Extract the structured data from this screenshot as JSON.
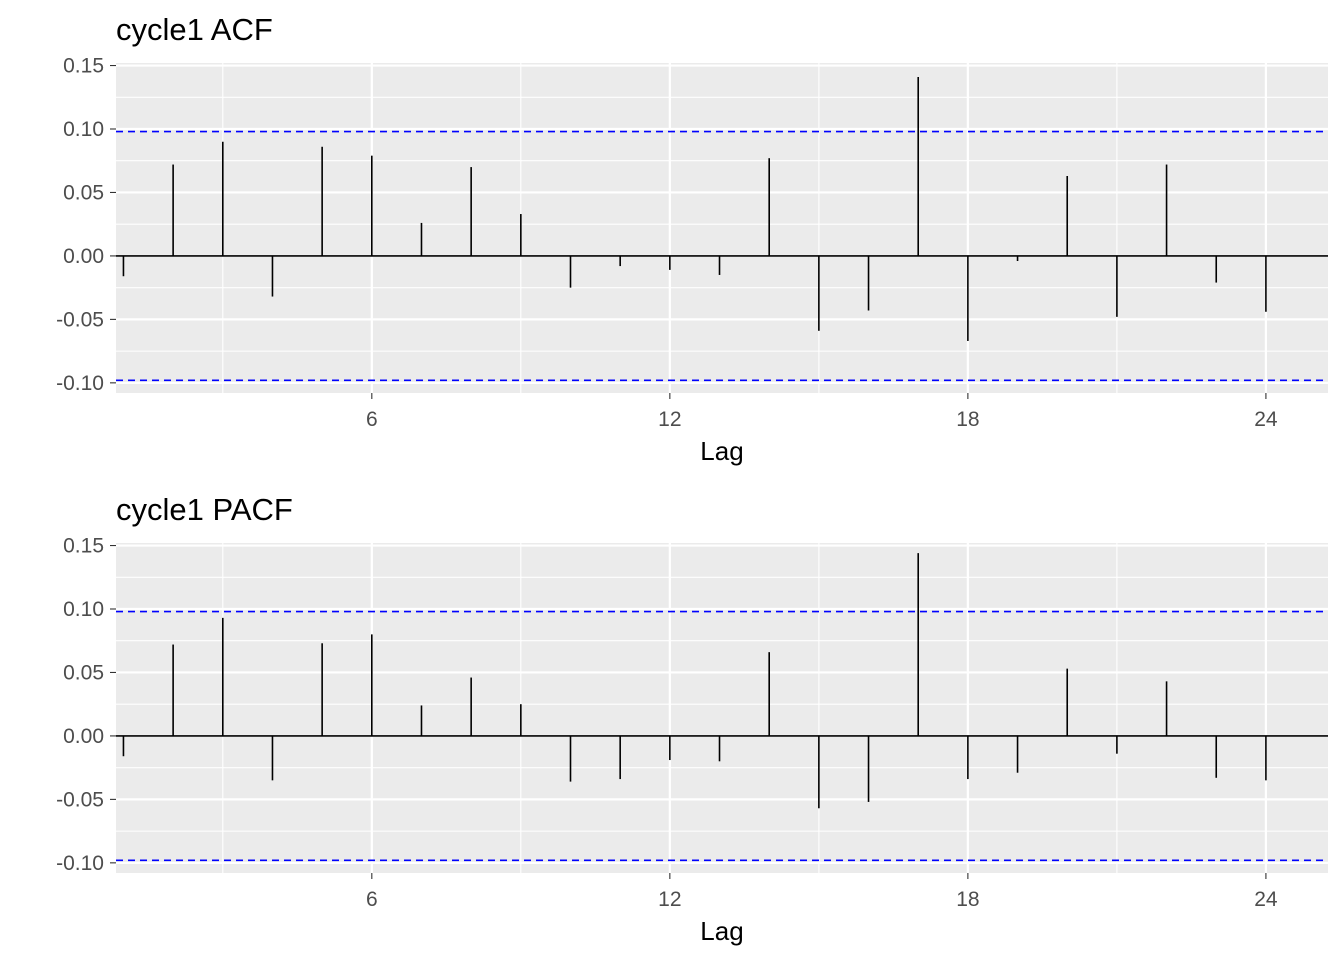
{
  "chart_data": [
    {
      "type": "bar",
      "title": "cycle1 ACF",
      "xlabel": "Lag",
      "ylabel": "",
      "xlim": [
        0.85,
        25.25
      ],
      "ylim": [
        -0.108,
        0.152
      ],
      "x_ticks": [
        6,
        12,
        18,
        24
      ],
      "y_ticks": [
        -0.1,
        -0.05,
        0.0,
        0.05,
        0.1,
        0.15
      ],
      "y_tick_labels": [
        "-0.10",
        "-0.05",
        "0.00",
        "0.05",
        "0.10",
        "0.15"
      ],
      "confidence_bound": 0.098,
      "bound_color": "#0000ff",
      "lags": [
        1,
        2,
        3,
        4,
        5,
        6,
        7,
        8,
        9,
        10,
        11,
        12,
        13,
        14,
        15,
        16,
        17,
        18,
        19,
        20,
        21,
        22,
        23,
        24
      ],
      "values": [
        -0.016,
        0.072,
        0.09,
        -0.032,
        0.086,
        0.079,
        0.026,
        0.07,
        0.033,
        -0.025,
        -0.008,
        -0.011,
        -0.015,
        0.077,
        -0.059,
        -0.043,
        0.141,
        -0.067,
        -0.004,
        0.063,
        -0.048,
        0.072,
        -0.021,
        -0.044
      ],
      "grid": true,
      "panel_background": "#ebebeb"
    },
    {
      "type": "bar",
      "title": "cycle1 PACF",
      "xlabel": "Lag",
      "ylabel": "",
      "xlim": [
        0.85,
        25.25
      ],
      "ylim": [
        -0.108,
        0.152
      ],
      "x_ticks": [
        6,
        12,
        18,
        24
      ],
      "y_ticks": [
        -0.1,
        -0.05,
        0.0,
        0.05,
        0.1,
        0.15
      ],
      "y_tick_labels": [
        "-0.10",
        "-0.05",
        "0.00",
        "0.05",
        "0.10",
        "0.15"
      ],
      "confidence_bound": 0.098,
      "bound_color": "#0000ff",
      "lags": [
        1,
        2,
        3,
        4,
        5,
        6,
        7,
        8,
        9,
        10,
        11,
        12,
        13,
        14,
        15,
        16,
        17,
        18,
        19,
        20,
        21,
        22,
        23,
        24
      ],
      "values": [
        -0.016,
        0.072,
        0.093,
        -0.035,
        0.073,
        0.08,
        0.024,
        0.046,
        0.025,
        -0.036,
        -0.034,
        -0.019,
        -0.02,
        0.066,
        -0.057,
        -0.052,
        0.144,
        -0.034,
        -0.029,
        0.053,
        -0.014,
        0.043,
        -0.033,
        -0.035
      ],
      "grid": true,
      "panel_background": "#ebebeb"
    }
  ]
}
